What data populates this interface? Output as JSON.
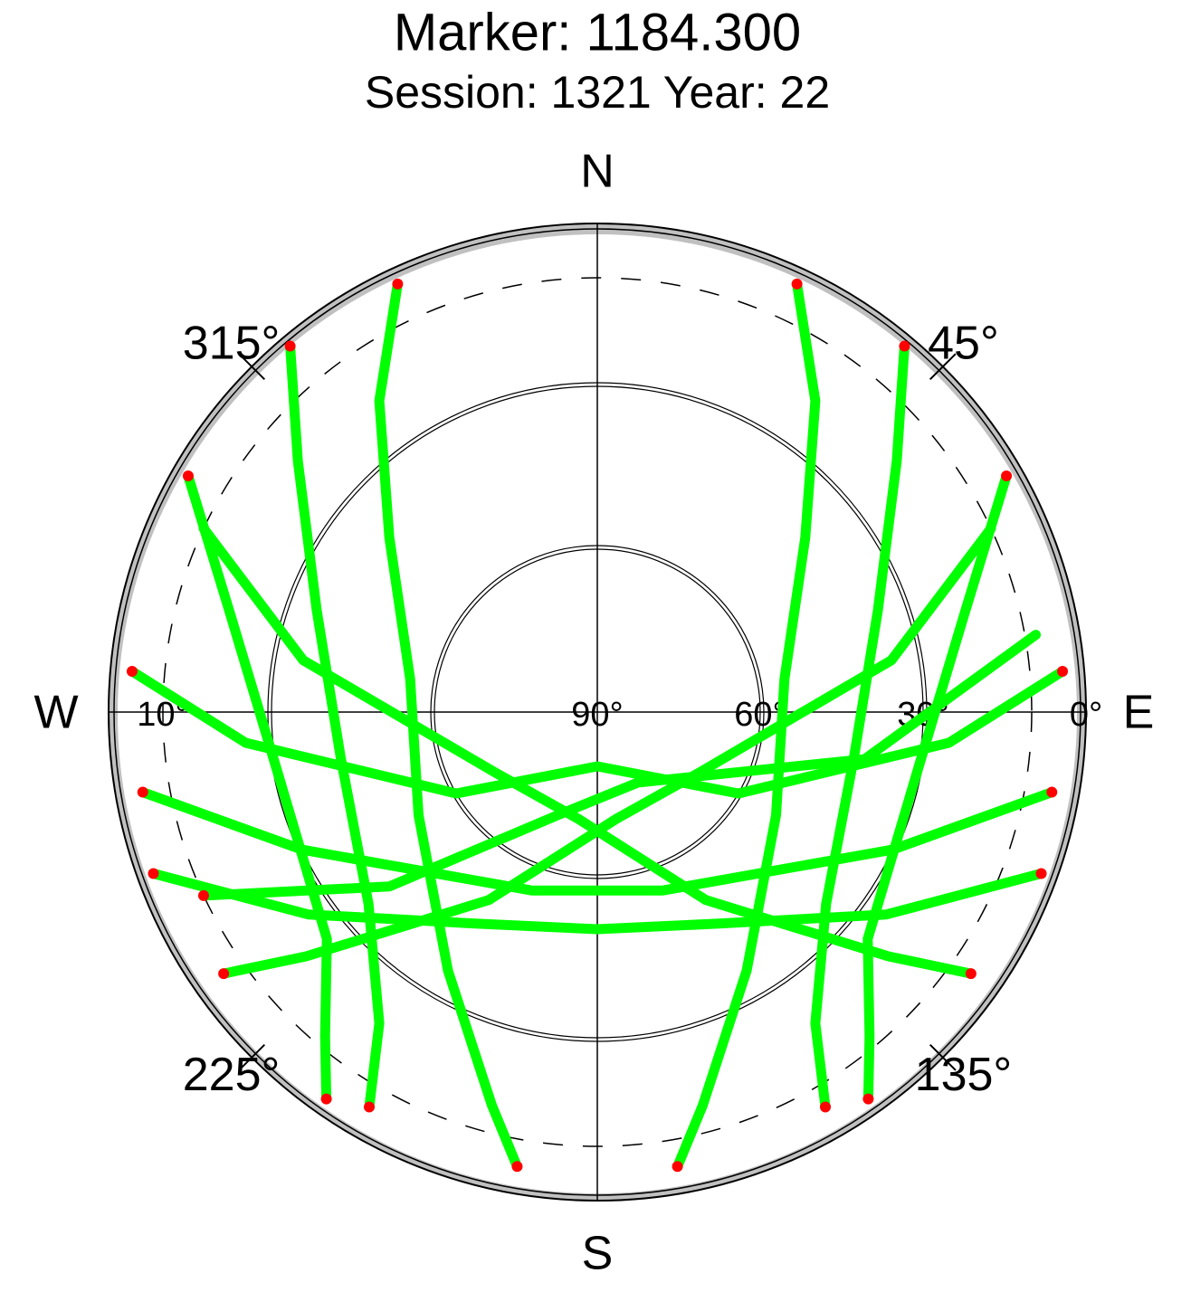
{
  "chart_data": {
    "type": "skyplot",
    "title": "Marker: 1184.300",
    "subtitle": "Session: 1321 Year: 22",
    "xlim": [
      0,
      360
    ],
    "xticks": [
      {
        "value": 45,
        "label": "45°"
      },
      {
        "value": 135,
        "label": "135°"
      },
      {
        "value": 225,
        "label": "225°"
      },
      {
        "value": 315,
        "label": "315°"
      }
    ],
    "directions": [
      {
        "value": 0,
        "label": "N"
      },
      {
        "value": 90,
        "label": "E"
      },
      {
        "value": 180,
        "label": "S"
      },
      {
        "value": 270,
        "label": "W"
      }
    ],
    "ylim": [
      0,
      90
    ],
    "yticks": [
      {
        "value": 0,
        "label": "0°"
      },
      {
        "value": 30,
        "label": "30°"
      },
      {
        "value": 60,
        "label": "60°"
      },
      {
        "value": 90,
        "label": "90°"
      }
    ],
    "elevation_mask": {
      "value": 10,
      "label": "10°"
    },
    "series": [
      {
        "color": "#00ff00",
        "x": [
          25,
          35,
          50,
          80,
          120,
          150,
          165,
          170
        ],
        "values": [
          3,
          20,
          40,
          55,
          52,
          35,
          15,
          5
        ]
      },
      {
        "color": "#00ff00",
        "x": [
          335,
          325,
          310,
          280,
          240,
          210,
          195,
          190
        ],
        "values": [
          3,
          20,
          40,
          55,
          52,
          35,
          15,
          5
        ]
      },
      {
        "color": "#00ff00",
        "x": [
          40,
          50,
          70,
          100,
          130,
          145,
          150
        ],
        "values": [
          2,
          18,
          35,
          42,
          35,
          20,
          6
        ]
      },
      {
        "color": "#00ff00",
        "x": [
          320,
          310,
          290,
          260,
          230,
          215,
          210
        ],
        "values": [
          2,
          18,
          35,
          42,
          35,
          20,
          6
        ]
      },
      {
        "color": "#00ff00",
        "x": [
          60,
          75,
          100,
          130,
          140,
          145
        ],
        "values": [
          3,
          20,
          30,
          25,
          12,
          3
        ]
      },
      {
        "color": "#00ff00",
        "x": [
          300,
          285,
          260,
          230,
          220,
          215
        ],
        "values": [
          3,
          20,
          30,
          25,
          12,
          3
        ]
      },
      {
        "color": "#00ff00",
        "x": [
          85,
          95,
          120,
          180,
          240,
          265,
          275
        ],
        "values": [
          4,
          25,
          60,
          80,
          60,
          25,
          4
        ]
      },
      {
        "color": "#00ff00",
        "x": [
          80,
          100,
          150,
          200,
          230,
          245
        ],
        "values": [
          8,
          40,
          75,
          70,
          40,
          10
        ]
      },
      {
        "color": "#00ff00",
        "x": [
          110,
          125,
          150,
          180,
          210,
          235,
          250
        ],
        "values": [
          3,
          25,
          45,
          50,
          45,
          25,
          3
        ]
      },
      {
        "color": "#00ff00",
        "x": [
          100,
          115,
          160,
          200,
          245,
          260
        ],
        "values": [
          5,
          30,
          55,
          55,
          30,
          5
        ]
      },
      {
        "color": "#00ff00",
        "x": [
          65,
          80,
          120,
          170,
          210,
          230,
          235
        ],
        "values": [
          10,
          35,
          68,
          70,
          50,
          20,
          6
        ]
      },
      {
        "color": "#00ff00",
        "x": [
          295,
          280,
          240,
          190,
          150,
          130,
          125
        ],
        "values": [
          10,
          35,
          68,
          70,
          50,
          20,
          6
        ]
      },
      {
        "color": "#ff0000",
        "x": [
          25,
          335,
          40,
          320,
          60,
          300,
          85,
          275,
          110,
          250,
          145,
          215,
          170,
          190,
          150,
          210,
          100,
          260,
          235,
          125,
          245
        ],
        "values": [
          3,
          3,
          2,
          2,
          3,
          3,
          4,
          4,
          3,
          3,
          3,
          3,
          5,
          5,
          6,
          6,
          5,
          5,
          6,
          6,
          10
        ]
      }
    ]
  }
}
